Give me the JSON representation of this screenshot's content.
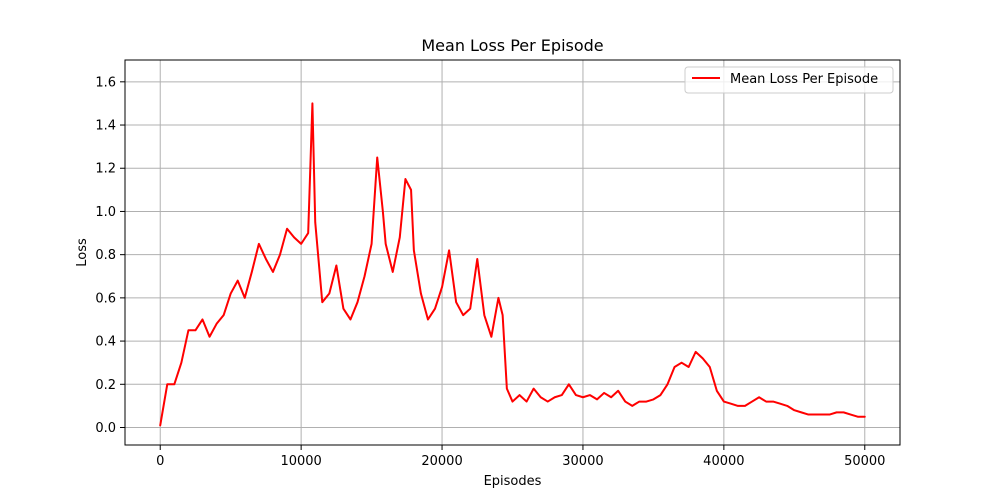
{
  "chart_data": {
    "type": "line",
    "title": "Mean Loss Per Episode",
    "xlabel": "Episodes",
    "ylabel": "Loss",
    "xlim": [
      -2500,
      52500
    ],
    "ylim": [
      -0.081,
      1.701
    ],
    "grid": true,
    "legend_position": "top-right",
    "x_ticks": [
      0,
      10000,
      20000,
      30000,
      40000,
      50000
    ],
    "x_tick_labels": [
      "0",
      "10000",
      "20000",
      "30000",
      "40000",
      "50000"
    ],
    "y_ticks": [
      0.0,
      0.2,
      0.4,
      0.6,
      0.8,
      1.0,
      1.2,
      1.4,
      1.6
    ],
    "y_tick_labels": [
      "0.0",
      "0.2",
      "0.4",
      "0.6",
      "0.8",
      "1.0",
      "1.2",
      "1.4",
      "1.6"
    ],
    "series": [
      {
        "name": "Mean Loss Per Episode",
        "color": "#ff0000",
        "x": [
          0,
          500,
          1000,
          1500,
          2000,
          2500,
          3000,
          3500,
          4000,
          4500,
          5000,
          5500,
          6000,
          6500,
          7000,
          7500,
          8000,
          8500,
          9000,
          9500,
          10000,
          10500,
          10800,
          11000,
          11500,
          12000,
          12500,
          13000,
          13500,
          14000,
          14500,
          15000,
          15400,
          15800,
          16000,
          16500,
          17000,
          17400,
          17800,
          18000,
          18500,
          19000,
          19500,
          20000,
          20500,
          21000,
          21500,
          22000,
          22500,
          23000,
          23500,
          24000,
          24300,
          24600,
          25000,
          25500,
          26000,
          26500,
          27000,
          27500,
          28000,
          28500,
          29000,
          29500,
          30000,
          30500,
          31000,
          31500,
          32000,
          32500,
          33000,
          33500,
          34000,
          34500,
          35000,
          35500,
          36000,
          36500,
          37000,
          37500,
          38000,
          38500,
          39000,
          39500,
          40000,
          40500,
          41000,
          41500,
          42000,
          42500,
          43000,
          43500,
          44000,
          44500,
          45000,
          45500,
          46000,
          46500,
          47000,
          47500,
          48000,
          48500,
          49000,
          49500,
          50000
        ],
        "values": [
          0.01,
          0.2,
          0.2,
          0.3,
          0.45,
          0.45,
          0.5,
          0.42,
          0.48,
          0.52,
          0.62,
          0.68,
          0.6,
          0.72,
          0.85,
          0.78,
          0.72,
          0.8,
          0.92,
          0.88,
          0.85,
          0.9,
          1.5,
          0.95,
          0.58,
          0.62,
          0.75,
          0.55,
          0.5,
          0.58,
          0.7,
          0.85,
          1.25,
          1.0,
          0.85,
          0.72,
          0.88,
          1.15,
          1.1,
          0.82,
          0.62,
          0.5,
          0.55,
          0.65,
          0.82,
          0.58,
          0.52,
          0.55,
          0.78,
          0.52,
          0.42,
          0.6,
          0.52,
          0.18,
          0.12,
          0.15,
          0.12,
          0.18,
          0.14,
          0.12,
          0.14,
          0.15,
          0.2,
          0.15,
          0.14,
          0.15,
          0.13,
          0.16,
          0.14,
          0.17,
          0.12,
          0.1,
          0.12,
          0.12,
          0.13,
          0.15,
          0.2,
          0.28,
          0.3,
          0.28,
          0.35,
          0.32,
          0.28,
          0.17,
          0.12,
          0.11,
          0.1,
          0.1,
          0.12,
          0.14,
          0.12,
          0.12,
          0.11,
          0.1,
          0.08,
          0.07,
          0.06,
          0.06,
          0.06,
          0.06,
          0.07,
          0.07,
          0.06,
          0.05,
          0.05
        ]
      }
    ]
  }
}
